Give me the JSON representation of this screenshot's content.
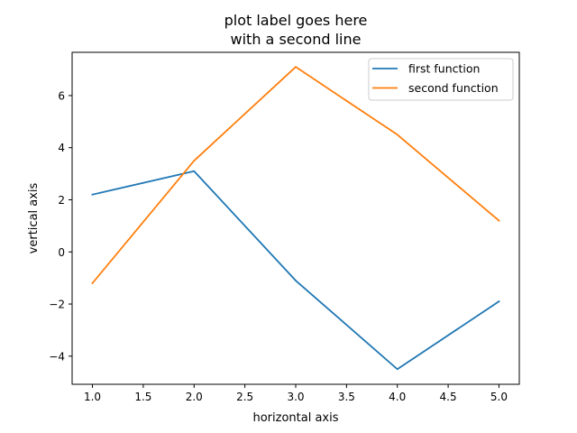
{
  "chart_data": {
    "type": "line",
    "title": [
      "plot label goes here",
      "with a second line"
    ],
    "xlabel": "horizontal axis",
    "ylabel": "vertical axis",
    "x": [
      1.0,
      2.0,
      3.0,
      4.0,
      5.0
    ],
    "xlim": [
      0.8,
      5.2
    ],
    "ylim": [
      -5.08,
      7.66
    ],
    "xticks": [
      {
        "value": 1.0,
        "label": "1.0"
      },
      {
        "value": 1.5,
        "label": "1.5"
      },
      {
        "value": 2.0,
        "label": "2.0"
      },
      {
        "value": 2.5,
        "label": "2.5"
      },
      {
        "value": 3.0,
        "label": "3.0"
      },
      {
        "value": 3.5,
        "label": "3.5"
      },
      {
        "value": 4.0,
        "label": "4.0"
      },
      {
        "value": 4.5,
        "label": "4.5"
      },
      {
        "value": 5.0,
        "label": "5.0"
      }
    ],
    "yticks": [
      {
        "value": -4,
        "label": "−4"
      },
      {
        "value": -2,
        "label": "−2"
      },
      {
        "value": 0,
        "label": "0"
      },
      {
        "value": 2,
        "label": "2"
      },
      {
        "value": 4,
        "label": "4"
      },
      {
        "value": 6,
        "label": "6"
      }
    ],
    "series": [
      {
        "name": "first function",
        "color": "#1f77b4",
        "values": [
          2.2,
          3.1,
          -1.1,
          -4.5,
          -1.9
        ]
      },
      {
        "name": "second function",
        "color": "#ff7f0e",
        "values": [
          -1.2,
          3.5,
          7.1,
          4.5,
          1.2
        ]
      }
    ],
    "grid": false,
    "legend": "upper right"
  }
}
